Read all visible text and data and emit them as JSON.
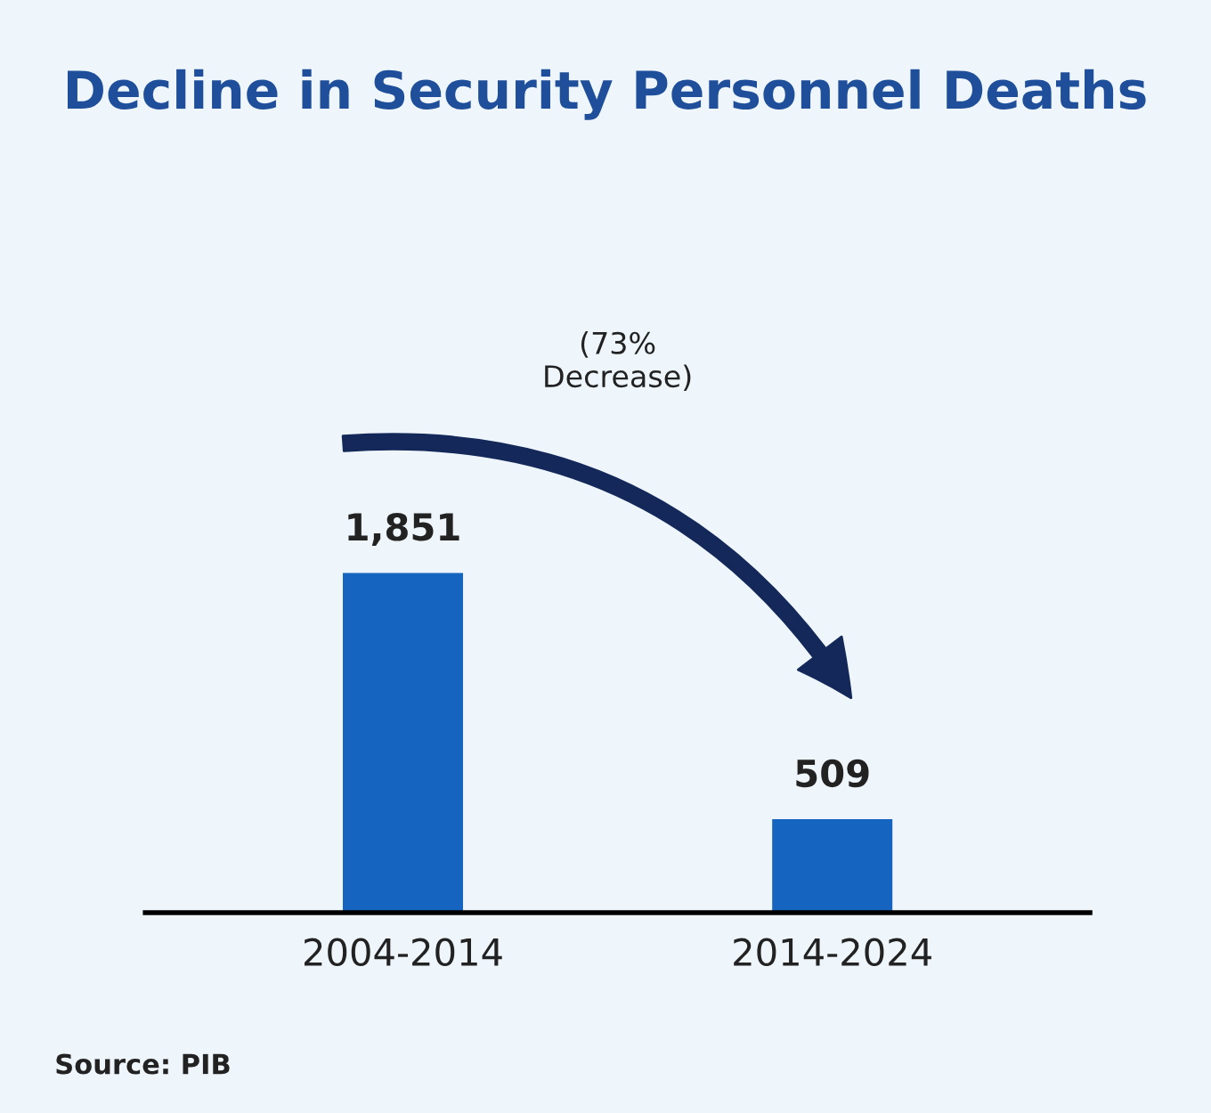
{
  "chart_data": {
    "type": "bar",
    "title": "Decline in Security Personnel Deaths",
    "categories": [
      "2004-2014",
      "2014-2024"
    ],
    "values": [
      1851,
      509
    ],
    "color": "#1565c0",
    "value_labels": [
      "1,851",
      "509"
    ],
    "grid": false,
    "annotations": [
      "(73%\nDecrease)",
      "Source: PIB"
    ]
  }
}
